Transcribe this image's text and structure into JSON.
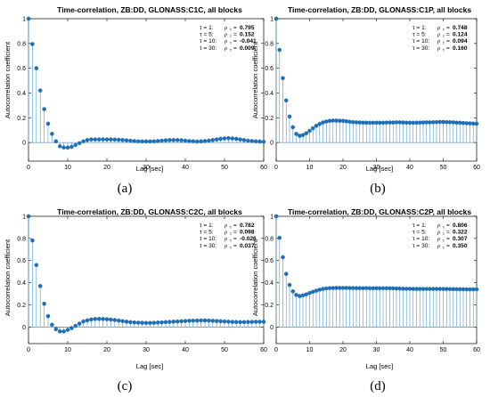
{
  "figure": {
    "panel_labels": [
      "(a)",
      "(b)",
      "(c)",
      "(d)"
    ]
  },
  "chart_data": [
    {
      "type": "stem",
      "title": "Time-correlation, ZB:DD, GLONASS:C1C, all blocks",
      "xlabel": "Lag [sec]",
      "ylabel": "Autocorrelation coefficient",
      "xlim": [
        0,
        60
      ],
      "ylim": [
        -0.15,
        1.0
      ],
      "xticks": [
        0,
        10,
        20,
        30,
        40,
        50,
        60
      ],
      "yticks": [
        0,
        0.2,
        0.4,
        0.6,
        0.8,
        1
      ],
      "grid": false,
      "annotations": [
        {
          "tau": "τ = 1:",
          "rho": "ρ",
          "value": "0.795"
        },
        {
          "tau": "τ = 5:",
          "rho": "ρ",
          "value": "0.152"
        },
        {
          "tau": "τ = 10:",
          "rho": "ρ",
          "value": "-0.041"
        },
        {
          "tau": "τ = 30:",
          "rho": "ρ",
          "value": "0.009"
        }
      ],
      "x": [
        0,
        1,
        2,
        3,
        4,
        5,
        6,
        7,
        8,
        9,
        10,
        11,
        12,
        13,
        14,
        15,
        16,
        17,
        18,
        19,
        20,
        21,
        22,
        23,
        24,
        25,
        26,
        27,
        28,
        29,
        30,
        31,
        32,
        33,
        34,
        35,
        36,
        37,
        38,
        39,
        40,
        41,
        42,
        43,
        44,
        45,
        46,
        47,
        48,
        49,
        50,
        51,
        52,
        53,
        54,
        55,
        56,
        57,
        58,
        59,
        60
      ],
      "values": [
        1.0,
        0.795,
        0.6,
        0.42,
        0.27,
        0.152,
        0.07,
        0.01,
        -0.03,
        -0.04,
        -0.041,
        -0.035,
        -0.02,
        -0.005,
        0.01,
        0.02,
        0.025,
        0.025,
        0.025,
        0.025,
        0.025,
        0.025,
        0.024,
        0.022,
        0.02,
        0.018,
        0.015,
        0.012,
        0.01,
        0.009,
        0.009,
        0.009,
        0.01,
        0.012,
        0.015,
        0.018,
        0.02,
        0.02,
        0.02,
        0.018,
        0.015,
        0.012,
        0.01,
        0.008,
        0.01,
        0.012,
        0.015,
        0.02,
        0.025,
        0.03,
        0.033,
        0.035,
        0.033,
        0.03,
        0.025,
        0.02,
        0.015,
        0.012,
        0.01,
        0.008,
        0.006
      ]
    },
    {
      "type": "stem",
      "title": "Time-correlation, ZB:DD, GLONASS:C1P, all blocks",
      "xlabel": "Lag [sec]",
      "ylabel": "Autocorrelation coefficient",
      "xlim": [
        0,
        60
      ],
      "ylim": [
        -0.15,
        1.0
      ],
      "xticks": [
        0,
        10,
        20,
        30,
        40,
        50,
        60
      ],
      "yticks": [
        0,
        0.2,
        0.4,
        0.6,
        0.8,
        1
      ],
      "grid": false,
      "annotations": [
        {
          "tau": "τ = 1:",
          "rho": "ρ",
          "value": "0.748"
        },
        {
          "tau": "τ = 5:",
          "rho": "ρ",
          "value": "0.124"
        },
        {
          "tau": "τ = 10:",
          "rho": "ρ",
          "value": "0.094"
        },
        {
          "tau": "τ = 30:",
          "rho": "ρ",
          "value": "0.160"
        }
      ],
      "x": [
        0,
        1,
        2,
        3,
        4,
        5,
        6,
        7,
        8,
        9,
        10,
        11,
        12,
        13,
        14,
        15,
        16,
        17,
        18,
        19,
        20,
        21,
        22,
        23,
        24,
        25,
        26,
        27,
        28,
        29,
        30,
        31,
        32,
        33,
        34,
        35,
        36,
        37,
        38,
        39,
        40,
        41,
        42,
        43,
        44,
        45,
        46,
        47,
        48,
        49,
        50,
        51,
        52,
        53,
        54,
        55,
        56,
        57,
        58,
        59,
        60
      ],
      "values": [
        1.0,
        0.748,
        0.52,
        0.34,
        0.21,
        0.124,
        0.07,
        0.055,
        0.06,
        0.075,
        0.094,
        0.115,
        0.135,
        0.15,
        0.162,
        0.17,
        0.175,
        0.177,
        0.177,
        0.176,
        0.175,
        0.172,
        0.168,
        0.165,
        0.163,
        0.162,
        0.161,
        0.16,
        0.16,
        0.16,
        0.16,
        0.16,
        0.16,
        0.161,
        0.162,
        0.162,
        0.163,
        0.163,
        0.162,
        0.161,
        0.16,
        0.16,
        0.16,
        0.161,
        0.162,
        0.163,
        0.163,
        0.164,
        0.165,
        0.166,
        0.166,
        0.165,
        0.164,
        0.163,
        0.161,
        0.16,
        0.158,
        0.156,
        0.155,
        0.153,
        0.152
      ]
    },
    {
      "type": "stem",
      "title": "Time-correlation, ZB:DD, GLONASS:C2C, all blocks",
      "xlabel": "Lag [sec]",
      "ylabel": "Autocorrelation coefficient",
      "xlim": [
        0,
        60
      ],
      "ylim": [
        -0.15,
        1.0
      ],
      "xticks": [
        0,
        10,
        20,
        30,
        40,
        50,
        60
      ],
      "yticks": [
        0,
        0.2,
        0.4,
        0.6,
        0.8,
        1
      ],
      "grid": false,
      "annotations": [
        {
          "tau": "τ = 1:",
          "rho": "ρ",
          "value": "0.782"
        },
        {
          "tau": "τ = 5:",
          "rho": "ρ",
          "value": "0.098"
        },
        {
          "tau": "τ = 10:",
          "rho": "ρ",
          "value": "-0.026"
        },
        {
          "tau": "τ = 30:",
          "rho": "ρ",
          "value": "0.037"
        }
      ],
      "x": [
        0,
        1,
        2,
        3,
        4,
        5,
        6,
        7,
        8,
        9,
        10,
        11,
        12,
        13,
        14,
        15,
        16,
        17,
        18,
        19,
        20,
        21,
        22,
        23,
        24,
        25,
        26,
        27,
        28,
        29,
        30,
        31,
        32,
        33,
        34,
        35,
        36,
        37,
        38,
        39,
        40,
        41,
        42,
        43,
        44,
        45,
        46,
        47,
        48,
        49,
        50,
        51,
        52,
        53,
        54,
        55,
        56,
        57,
        58,
        59,
        60
      ],
      "values": [
        1.0,
        0.782,
        0.56,
        0.37,
        0.21,
        0.098,
        0.02,
        -0.02,
        -0.04,
        -0.04,
        -0.026,
        -0.01,
        0.01,
        0.03,
        0.05,
        0.06,
        0.068,
        0.072,
        0.073,
        0.072,
        0.07,
        0.067,
        0.063,
        0.058,
        0.053,
        0.048,
        0.044,
        0.041,
        0.039,
        0.038,
        0.037,
        0.037,
        0.038,
        0.04,
        0.042,
        0.044,
        0.046,
        0.048,
        0.05,
        0.052,
        0.054,
        0.056,
        0.057,
        0.058,
        0.059,
        0.059,
        0.058,
        0.056,
        0.054,
        0.052,
        0.05,
        0.048,
        0.046,
        0.045,
        0.044,
        0.044,
        0.045,
        0.046,
        0.047,
        0.047,
        0.047
      ]
    },
    {
      "type": "stem",
      "title": "Time-correlation, ZB:DD, GLONASS:C2P, all blocks",
      "xlabel": "Lag [sec]",
      "ylabel": "Autocorrelation coefficient",
      "xlim": [
        0,
        60
      ],
      "ylim": [
        -0.15,
        1.0
      ],
      "xticks": [
        0,
        10,
        20,
        30,
        40,
        50,
        60
      ],
      "yticks": [
        0,
        0.2,
        0.4,
        0.6,
        0.8,
        1
      ],
      "grid": false,
      "annotations": [
        {
          "tau": "τ = 1:",
          "rho": "ρ",
          "value": "0.806"
        },
        {
          "tau": "τ = 5:",
          "rho": "ρ",
          "value": "0.322"
        },
        {
          "tau": "τ = 10:",
          "rho": "ρ",
          "value": "0.307"
        },
        {
          "tau": "τ = 30:",
          "rho": "ρ",
          "value": "0.350"
        }
      ],
      "x": [
        0,
        1,
        2,
        3,
        4,
        5,
        6,
        7,
        8,
        9,
        10,
        11,
        12,
        13,
        14,
        15,
        16,
        17,
        18,
        19,
        20,
        21,
        22,
        23,
        24,
        25,
        26,
        27,
        28,
        29,
        30,
        31,
        32,
        33,
        34,
        35,
        36,
        37,
        38,
        39,
        40,
        41,
        42,
        43,
        44,
        45,
        46,
        47,
        48,
        49,
        50,
        51,
        52,
        53,
        54,
        55,
        56,
        57,
        58,
        59,
        60
      ],
      "values": [
        1.0,
        0.806,
        0.63,
        0.48,
        0.38,
        0.322,
        0.29,
        0.28,
        0.285,
        0.295,
        0.307,
        0.318,
        0.328,
        0.337,
        0.344,
        0.348,
        0.351,
        0.352,
        0.353,
        0.353,
        0.353,
        0.353,
        0.352,
        0.352,
        0.351,
        0.351,
        0.351,
        0.351,
        0.35,
        0.35,
        0.35,
        0.35,
        0.35,
        0.35,
        0.35,
        0.349,
        0.348,
        0.347,
        0.346,
        0.345,
        0.345,
        0.344,
        0.344,
        0.344,
        0.344,
        0.344,
        0.344,
        0.344,
        0.344,
        0.344,
        0.344,
        0.343,
        0.343,
        0.342,
        0.342,
        0.341,
        0.341,
        0.34,
        0.34,
        0.34,
        0.34
      ]
    }
  ]
}
